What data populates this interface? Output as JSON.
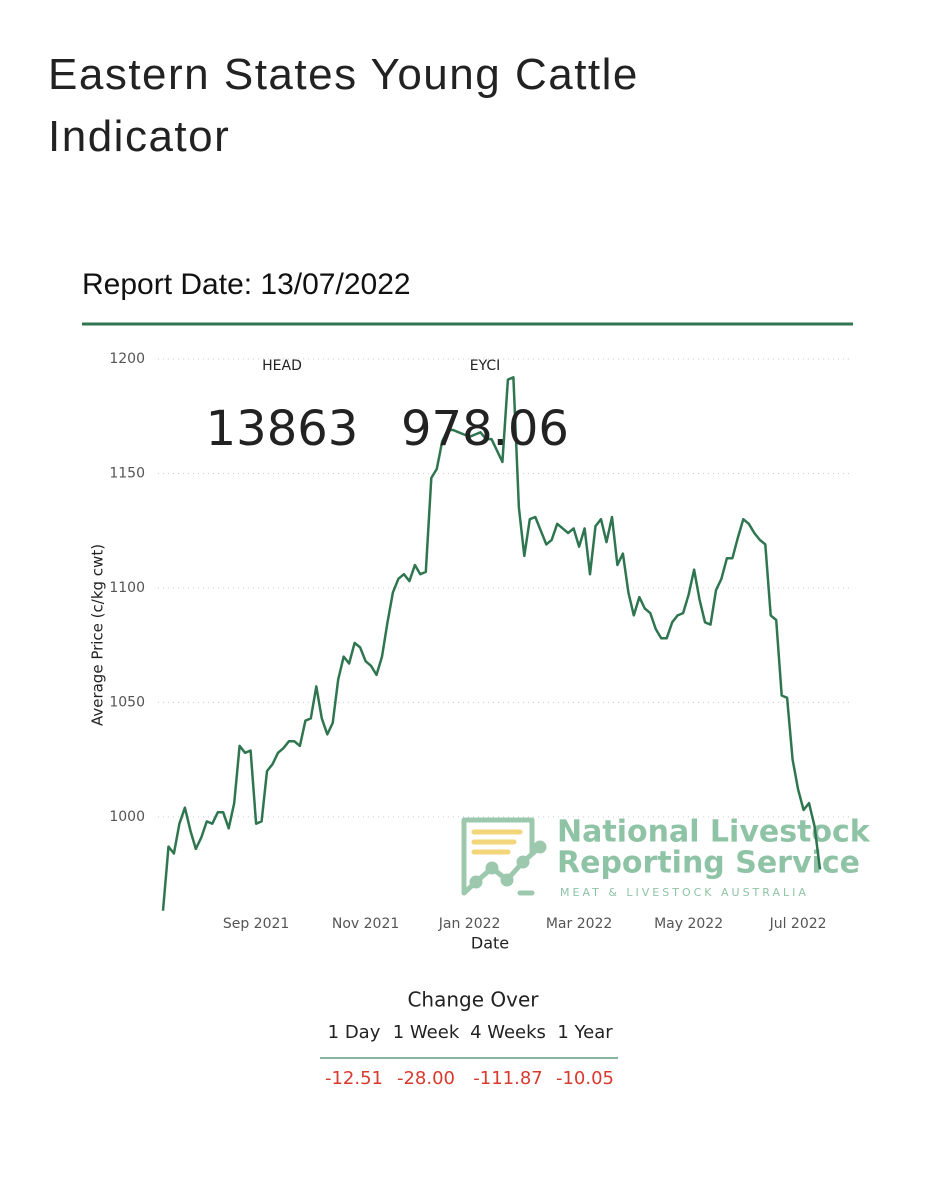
{
  "title": "Eastern States Young Cattle Indicator",
  "report_date": "Report Date: 13/07/2022",
  "kpis": [
    {
      "label": "HEAD",
      "value": 13863
    },
    {
      "label": "EYCI",
      "value": 978.06
    }
  ],
  "chart_data": {
    "type": "line",
    "x_label": "Date",
    "y_label": "Average Price (c/kg cwt)",
    "categories": [
      null,
      null,
      null,
      null,
      null,
      null,
      null,
      null,
      null,
      null,
      null,
      null,
      null,
      null,
      null,
      null,
      null,
      "Sep 2021",
      null,
      null,
      null,
      null,
      null,
      null,
      null,
      null,
      null,
      null,
      null,
      null,
      null,
      null,
      null,
      null,
      null,
      null,
      null,
      "Nov 2021",
      null,
      null,
      null,
      null,
      null,
      null,
      null,
      null,
      null,
      null,
      null,
      null,
      null,
      null,
      null,
      null,
      null,
      null,
      "Jan 2022",
      null,
      null,
      null,
      null,
      null,
      null,
      null,
      null,
      null,
      null,
      null,
      null,
      null,
      null,
      null,
      null,
      null,
      null,
      null,
      "Mar 2022",
      null,
      null,
      null,
      null,
      null,
      null,
      null,
      null,
      null,
      null,
      null,
      null,
      null,
      null,
      null,
      null,
      null,
      null,
      null,
      "May 2022",
      null,
      null,
      null,
      null,
      null,
      null,
      null,
      null,
      null,
      null,
      null,
      null,
      null,
      null,
      null,
      null,
      null,
      null,
      null,
      "Jul 2022",
      null,
      null,
      null,
      null
    ],
    "values": [
      959,
      987,
      984,
      997,
      1004,
      994,
      986,
      991,
      998,
      997,
      1002,
      1002,
      995,
      1006,
      1031,
      1028,
      1029,
      997,
      998,
      1020,
      1023,
      1028,
      1030,
      1033,
      1033,
      1031,
      1042,
      1043,
      1057,
      1043,
      1036,
      1041,
      1060,
      1070,
      1067,
      1076,
      1074,
      1068,
      1066,
      1062,
      1070,
      1085,
      1098,
      1104,
      1106,
      1103,
      1110,
      1106,
      1107,
      1148,
      1152,
      1164,
      1169,
      1169,
      1168,
      1167,
      1166,
      1167,
      1168,
      1165,
      1165,
      1160,
      1155,
      1191,
      1192,
      1135,
      1114,
      1130,
      1131,
      1125,
      1119,
      1121,
      1128,
      1126,
      1124,
      1126,
      1118,
      1126,
      1106,
      1127,
      1130,
      1120,
      1131,
      1110,
      1115,
      1098,
      1088,
      1096,
      1091,
      1089,
      1082,
      1078,
      1078,
      1085,
      1088,
      1089,
      1097,
      1108,
      1095,
      1085,
      1084,
      1099,
      1104,
      1113,
      1113,
      1122,
      1130,
      1128,
      1124,
      1121,
      1119,
      1088,
      1086,
      1053,
      1052,
      1025,
      1012,
      1003,
      1006,
      996,
      977
    ],
    "color": "#2f7650",
    "ylim": [
      958,
      1200
    ],
    "yticks": [
      1000,
      1050,
      1100,
      1150,
      1200
    ],
    "grid": true
  },
  "watermark": {
    "line1": "National Livestock",
    "line2": "Reporting Service",
    "sub": "MEAT & LIVESTOCK AUSTRALIA"
  },
  "change_table": {
    "title": "Change Over",
    "headers": [
      "1 Day",
      "1 Week",
      "4 Weeks",
      "1 Year"
    ],
    "values": [
      "-12.51",
      "-28.00",
      "-111.87",
      "-10.05"
    ]
  }
}
